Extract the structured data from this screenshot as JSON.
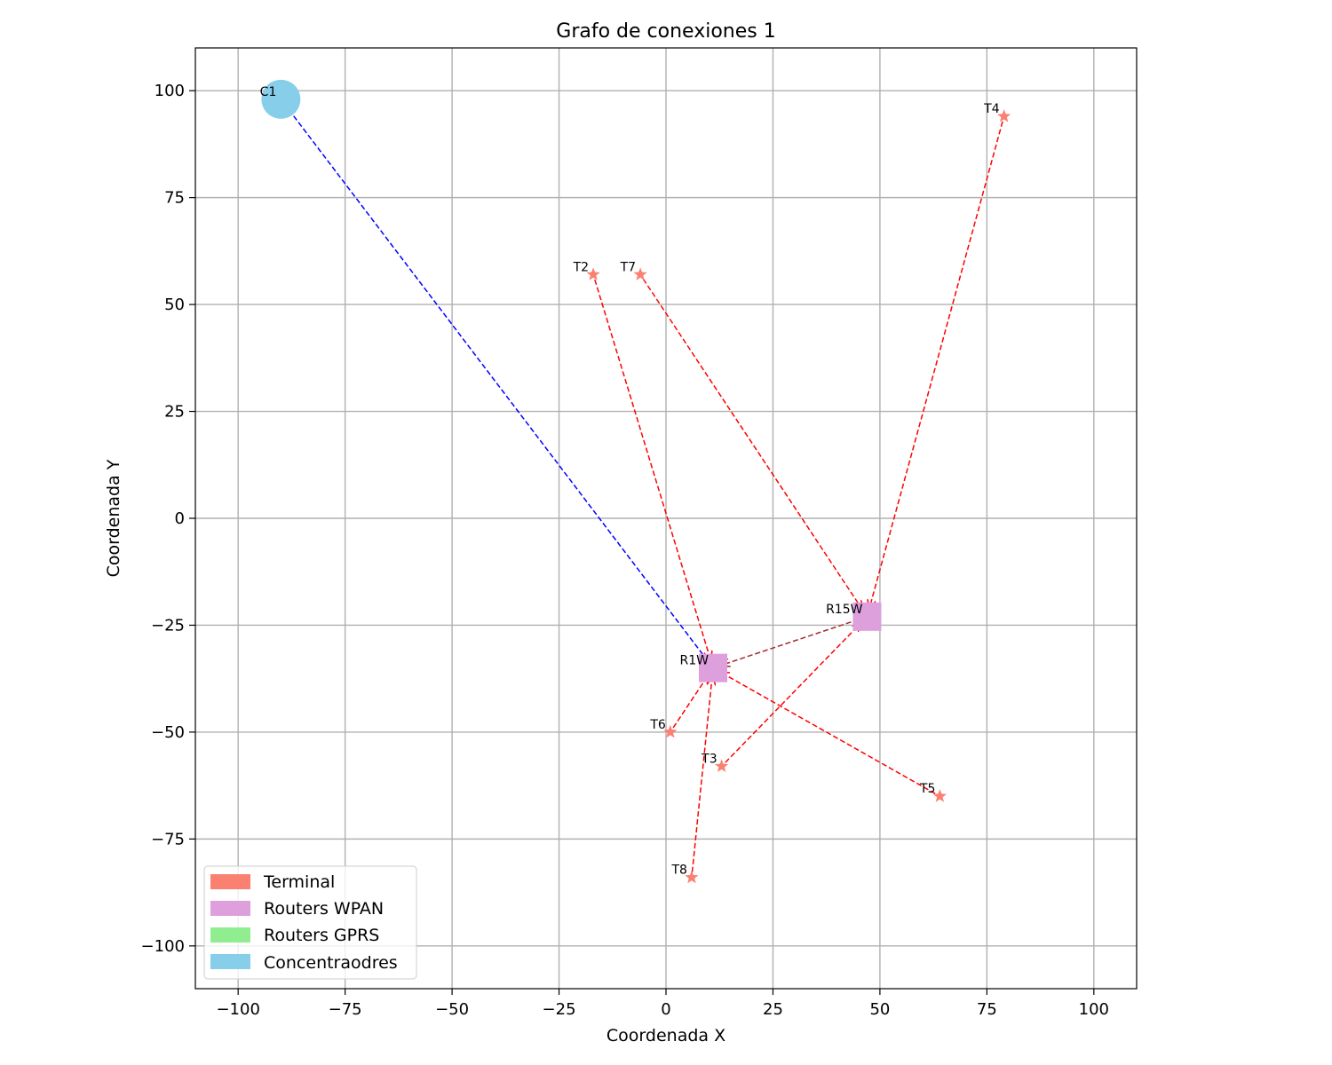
{
  "chart_data": {
    "type": "scatter",
    "title": "Grafo de conexiones 1",
    "xlabel": "Coordenada X",
    "ylabel": "Coordenada Y",
    "xlim": [
      -110,
      110
    ],
    "ylim": [
      -110,
      110
    ],
    "xticks": [
      -100,
      -75,
      -50,
      -25,
      0,
      25,
      50,
      75,
      100
    ],
    "yticks": [
      -100,
      -75,
      -50,
      -25,
      0,
      25,
      50,
      75,
      100
    ],
    "xtick_labels": [
      "−100",
      "−75",
      "−50",
      "−25",
      "0",
      "25",
      "50",
      "75",
      "100"
    ],
    "ytick_labels": [
      "−100",
      "−75",
      "−50",
      "−25",
      "0",
      "25",
      "50",
      "75",
      "100"
    ],
    "grid": true,
    "legend_position": "lower-left",
    "legend": [
      {
        "label": "Terminal",
        "color": "#fa8072"
      },
      {
        "label": "Routers WPAN",
        "color": "#dda0dd"
      },
      {
        "label": "Routers GPRS",
        "color": "#90ee90"
      },
      {
        "label": "Concentraodres",
        "color": "#87ceeb"
      }
    ],
    "nodes": [
      {
        "id": "C1",
        "type": "concentrator",
        "x": -90,
        "y": 98
      },
      {
        "id": "R1W",
        "type": "router_wpan",
        "x": 11,
        "y": -35
      },
      {
        "id": "R15W",
        "type": "router_wpan",
        "x": 47,
        "y": -23
      },
      {
        "id": "T2",
        "type": "terminal",
        "x": -17,
        "y": 57
      },
      {
        "id": "T7",
        "type": "terminal",
        "x": -6,
        "y": 57
      },
      {
        "id": "T4",
        "type": "terminal",
        "x": 79,
        "y": 94
      },
      {
        "id": "T6",
        "type": "terminal",
        "x": 1,
        "y": -50
      },
      {
        "id": "T3",
        "type": "terminal",
        "x": 13,
        "y": -58
      },
      {
        "id": "T5",
        "type": "terminal",
        "x": 64,
        "y": -65
      },
      {
        "id": "T8",
        "type": "terminal",
        "x": 6,
        "y": -84
      }
    ],
    "edges": [
      {
        "from": "R1W",
        "to": "C1",
        "color": "#0000ff"
      },
      {
        "from": "R15W",
        "to": "R1W",
        "color": "#a52a2a"
      },
      {
        "from": "T2",
        "to": "R1W",
        "color": "#ff0000"
      },
      {
        "from": "T6",
        "to": "R1W",
        "color": "#ff0000"
      },
      {
        "from": "T5",
        "to": "R1W",
        "color": "#ff0000"
      },
      {
        "from": "T8",
        "to": "R1W",
        "color": "#ff0000"
      },
      {
        "from": "T7",
        "to": "R15W",
        "color": "#ff0000"
      },
      {
        "from": "T4",
        "to": "R15W",
        "color": "#ff0000"
      },
      {
        "from": "T3",
        "to": "R15W",
        "color": "#ff0000"
      }
    ]
  }
}
